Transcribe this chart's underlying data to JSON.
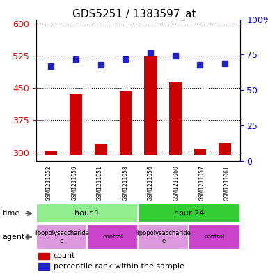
{
  "title": "GDS5251 / 1383597_at",
  "samples": [
    "GSM1211052",
    "GSM1211059",
    "GSM1211051",
    "GSM1211058",
    "GSM1211056",
    "GSM1211060",
    "GSM1211057",
    "GSM1211061"
  ],
  "count_values": [
    305,
    435,
    320,
    443,
    525,
    463,
    310,
    322
  ],
  "percentile_values": [
    67,
    72,
    68,
    72,
    76,
    74,
    68,
    69
  ],
  "ylim_left": [
    280,
    610
  ],
  "ylim_right": [
    0,
    100
  ],
  "yticks_left": [
    300,
    375,
    450,
    525,
    600
  ],
  "yticks_right": [
    0,
    25,
    50,
    75,
    100
  ],
  "bar_color": "#cc0000",
  "dot_color": "#2222cc",
  "bar_bottom": 295,
  "time_groups": [
    {
      "label": "hour 1",
      "start": 0,
      "end": 3,
      "color": "#90ee90"
    },
    {
      "label": "hour 24",
      "start": 4,
      "end": 7,
      "color": "#33cc33"
    }
  ],
  "agent_groups": [
    {
      "label": "lipopolysaccharide\ne",
      "start": 0,
      "end": 1,
      "color": "#dd99dd"
    },
    {
      "label": "control",
      "start": 2,
      "end": 3,
      "color": "#cc44cc"
    },
    {
      "label": "lipopolysaccharide\ne",
      "start": 4,
      "end": 5,
      "color": "#dd99dd"
    },
    {
      "label": "control",
      "start": 6,
      "end": 7,
      "color": "#cc44cc"
    }
  ],
  "legend_items": [
    {
      "label": "count",
      "color": "#cc0000"
    },
    {
      "label": "percentile rank within the sample",
      "color": "#2222cc"
    }
  ]
}
